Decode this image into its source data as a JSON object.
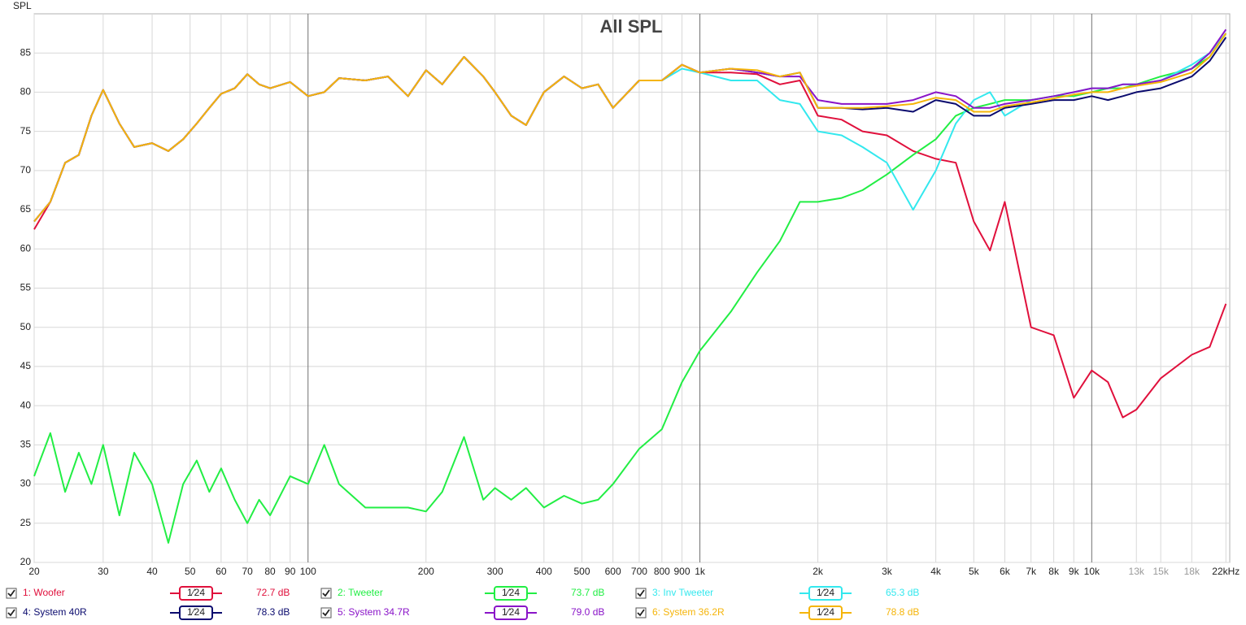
{
  "chart_data": {
    "type": "line",
    "title": "All SPL",
    "y_label": "SPL",
    "x_scale": "log",
    "xlim": [
      20,
      22500
    ],
    "ylim": [
      20,
      90
    ],
    "grid": true,
    "xticks": [
      20,
      30,
      40,
      50,
      60,
      70,
      80,
      90,
      100,
      200,
      300,
      400,
      500,
      600,
      700,
      800,
      900,
      {
        "value": 1000,
        "label": "1k"
      },
      {
        "value": 2000,
        "label": "2k"
      },
      {
        "value": 3000,
        "label": "3k"
      },
      {
        "value": 4000,
        "label": "4k"
      },
      {
        "value": 5000,
        "label": "5k"
      },
      {
        "value": 6000,
        "label": "6k"
      },
      {
        "value": 7000,
        "label": "7k"
      },
      {
        "value": 8000,
        "label": "8k"
      },
      {
        "value": 9000,
        "label": "9k"
      },
      {
        "value": 10000,
        "label": "10k"
      },
      {
        "value": 13000,
        "label": "13k",
        "color": "#999999"
      },
      {
        "value": 15000,
        "label": "15k",
        "color": "#999999"
      },
      {
        "value": 18000,
        "label": "18k",
        "color": "#999999"
      },
      {
        "value": 22000,
        "label": "22kHz"
      }
    ],
    "yticks": [
      20,
      25,
      30,
      35,
      40,
      45,
      50,
      55,
      60,
      65,
      70,
      75,
      80,
      85
    ],
    "x": [
      20,
      22,
      24,
      26,
      28,
      30,
      33,
      36,
      40,
      44,
      48,
      52,
      56,
      60,
      65,
      70,
      75,
      80,
      90,
      100,
      110,
      120,
      140,
      160,
      180,
      200,
      220,
      250,
      280,
      300,
      330,
      360,
      400,
      450,
      500,
      550,
      600,
      700,
      800,
      900,
      1000,
      1200,
      1400,
      1600,
      1800,
      2000,
      2300,
      2600,
      3000,
      3500,
      4000,
      4500,
      5000,
      5500,
      6000,
      7000,
      8000,
      9000,
      10000,
      11000,
      12000,
      13000,
      15000,
      18000,
      20000,
      22000
    ],
    "series": [
      {
        "name": "1: Woofer",
        "color": "#e0103c",
        "smoothing": "1⁄24",
        "level": "72.7 dB",
        "values": [
          62.5,
          66,
          71,
          72,
          77,
          80.3,
          76,
          73,
          73.5,
          72.5,
          74,
          76,
          78,
          79.8,
          80.5,
          82.3,
          81,
          80.5,
          81.3,
          79.5,
          80,
          81.8,
          81.5,
          82,
          79.5,
          82.8,
          81,
          84.5,
          82,
          80,
          77,
          75.8,
          80,
          82,
          80.5,
          81,
          78,
          81.5,
          81.5,
          83.5,
          82.5,
          82.5,
          82.3,
          81,
          81.5,
          77,
          76.5,
          75,
          74.5,
          72.5,
          71.5,
          71,
          63.5,
          59.8,
          66,
          50,
          49,
          41,
          44.5,
          43,
          38.5,
          39.5,
          43.5,
          46.5,
          47.5,
          53
        ]
      },
      {
        "name": "2: Tweeter",
        "color": "#22ee44",
        "smoothing": "1⁄24",
        "level": "73.7 dB",
        "values": [
          31,
          36.5,
          29,
          34,
          30,
          35,
          26,
          34,
          30,
          22.5,
          30,
          33,
          29,
          32,
          28,
          25,
          28,
          26,
          31,
          30,
          35,
          30,
          27,
          27,
          27,
          26.5,
          29,
          36,
          28,
          29.5,
          28,
          29.5,
          27,
          28.5,
          27.5,
          28,
          30,
          34.5,
          37,
          43,
          47,
          52,
          57,
          61,
          66,
          66,
          66.5,
          67.5,
          69.5,
          72,
          74,
          77,
          78,
          78.5,
          79,
          79,
          79.5,
          79.5,
          80,
          80.5,
          80.5,
          81,
          82,
          83,
          84.5,
          87.5
        ]
      },
      {
        "name": "3: Inv Tweeter",
        "color": "#33e8ee",
        "smoothing": "1⁄24",
        "level": "65.3 dB",
        "values": [
          63.5,
          66,
          71,
          72,
          77,
          80.3,
          76,
          73,
          73.5,
          72.5,
          74,
          76,
          78,
          79.8,
          80.5,
          82.3,
          81,
          80.5,
          81.3,
          79.5,
          80,
          81.8,
          81.5,
          82,
          79.5,
          82.8,
          81,
          84.5,
          82,
          80,
          77,
          75.8,
          80,
          82,
          80.5,
          81,
          78,
          81.5,
          81.5,
          83,
          82.5,
          81.5,
          81.5,
          79,
          78.5,
          75,
          74.5,
          73,
          71,
          65,
          70,
          76,
          79,
          80,
          77,
          79,
          79.5,
          80,
          80.5,
          80.5,
          81,
          81,
          81.5,
          83.5,
          85,
          87.5
        ]
      },
      {
        "name": "4: System 40R",
        "color": "#0b0b6e",
        "smoothing": "1⁄24",
        "level": "78.3 dB",
        "values": [
          63.5,
          66,
          71,
          72,
          77,
          80.3,
          76,
          73,
          73.5,
          72.5,
          74,
          76,
          78,
          79.8,
          80.5,
          82.3,
          81,
          80.5,
          81.3,
          79.5,
          80,
          81.8,
          81.5,
          82,
          79.5,
          82.8,
          81,
          84.5,
          82,
          80,
          77,
          75.8,
          80,
          82,
          80.5,
          81,
          78,
          81.5,
          81.5,
          83.5,
          82.5,
          83,
          82.5,
          82,
          82.5,
          78,
          78,
          77.8,
          78,
          77.5,
          79,
          78.5,
          77,
          77,
          78,
          78.5,
          79,
          79,
          79.5,
          79,
          79.5,
          80,
          80.5,
          82,
          84,
          87
        ]
      },
      {
        "name": "5: System 34.7R",
        "color": "#8a14c8",
        "smoothing": "1⁄24",
        "level": "79.0 dB",
        "values": [
          63.5,
          66,
          71,
          72,
          77,
          80.3,
          76,
          73,
          73.5,
          72.5,
          74,
          76,
          78,
          79.8,
          80.5,
          82.3,
          81,
          80.5,
          81.3,
          79.5,
          80,
          81.8,
          81.5,
          82,
          79.5,
          82.8,
          81,
          84.5,
          82,
          80,
          77,
          75.8,
          80,
          82,
          80.5,
          81,
          78,
          81.5,
          81.5,
          83.5,
          82.5,
          83,
          82.5,
          82,
          82,
          79,
          78.5,
          78.5,
          78.5,
          79,
          80,
          79.5,
          78,
          78,
          78.5,
          79,
          79.5,
          80,
          80.5,
          80.5,
          81,
          81,
          81.5,
          83,
          85,
          88
        ]
      },
      {
        "name": "6: System 36.2R",
        "color": "#f5b50a",
        "smoothing": "1⁄24",
        "level": "78.8 dB",
        "values": [
          63.5,
          66,
          71,
          72,
          77,
          80.3,
          76,
          73,
          73.5,
          72.5,
          74,
          76,
          78,
          79.8,
          80.5,
          82.3,
          81,
          80.5,
          81.3,
          79.5,
          80,
          81.8,
          81.5,
          82,
          79.5,
          82.8,
          81,
          84.5,
          82,
          80,
          77,
          75.8,
          80,
          82,
          80.5,
          81,
          78,
          81.5,
          81.5,
          83.5,
          82.5,
          83,
          82.8,
          82,
          82.5,
          78,
          78,
          78,
          78.2,
          78.5,
          79.3,
          79,
          77.5,
          77.5,
          78.2,
          78.7,
          79.2,
          79.7,
          80,
          80,
          80.5,
          80.8,
          81.3,
          82.5,
          84.5,
          87.5
        ]
      }
    ]
  }
}
